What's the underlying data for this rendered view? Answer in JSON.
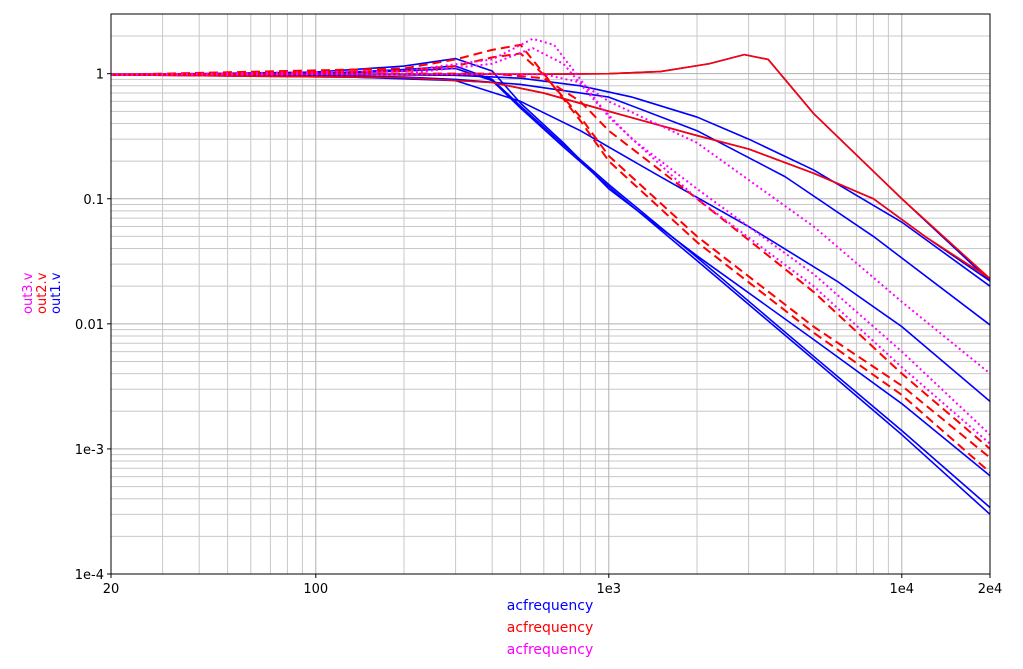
{
  "chart_data": {
    "type": "line",
    "title": "",
    "x_scale": "log",
    "y_scale": "log",
    "xlim": [
      20,
      20000
    ],
    "ylim": [
      0.0001,
      3
    ],
    "x_ticks": [
      {
        "value": 20,
        "label": "20"
      },
      {
        "value": 100,
        "label": "100"
      },
      {
        "value": 1000,
        "label": "1e3"
      },
      {
        "value": 10000,
        "label": "1e4"
      },
      {
        "value": 20000,
        "label": "2e4"
      }
    ],
    "y_ticks": [
      {
        "value": 1,
        "label": "1"
      },
      {
        "value": 0.1,
        "label": "0.1"
      },
      {
        "value": 0.01,
        "label": "0.01"
      },
      {
        "value": 0.001,
        "label": "1e-3"
      },
      {
        "value": 0.0001,
        "label": "1e-4"
      }
    ],
    "grid": true,
    "xlabels": [
      {
        "text": "acfrequency",
        "color": "#0000ff"
      },
      {
        "text": "acfrequency",
        "color": "#ff0000"
      },
      {
        "text": "acfrequency",
        "color": "#ff00ff"
      }
    ],
    "ylabels": [
      {
        "text": "out1.v",
        "color": "#0000ff"
      },
      {
        "text": "out2.v",
        "color": "#ff0000"
      },
      {
        "text": "out3.v",
        "color": "#ff00ff"
      }
    ],
    "series": [
      {
        "color": "#0000ff",
        "dash": "solid",
        "points": [
          [
            20,
            0.98
          ],
          [
            200,
            0.93
          ],
          [
            400,
            0.85
          ],
          [
            600,
            0.7
          ],
          [
            1000,
            0.5
          ],
          [
            2000,
            0.32
          ],
          [
            3000,
            0.25
          ],
          [
            5000,
            0.16
          ],
          [
            8000,
            0.1
          ],
          [
            12000,
            0.05
          ],
          [
            20000,
            0.022
          ]
        ]
      },
      {
        "color": "#0000ff",
        "dash": "solid",
        "points": [
          [
            20,
            0.99
          ],
          [
            300,
            0.99
          ],
          [
            600,
            0.99
          ],
          [
            1000,
            1.0
          ],
          [
            1500,
            1.04
          ],
          [
            2200,
            1.2
          ],
          [
            2900,
            1.42
          ],
          [
            3500,
            1.3
          ],
          [
            5000,
            0.48
          ],
          [
            10000,
            0.1
          ],
          [
            20000,
            0.022
          ]
        ]
      },
      {
        "color": "#0000ff",
        "dash": "solid",
        "points": [
          [
            20,
            0.99
          ],
          [
            100,
            0.99
          ],
          [
            300,
            0.97
          ],
          [
            500,
            0.92
          ],
          [
            800,
            0.8
          ],
          [
            1200,
            0.65
          ],
          [
            2000,
            0.45
          ],
          [
            3000,
            0.3
          ],
          [
            5000,
            0.17
          ],
          [
            10000,
            0.065
          ],
          [
            20000,
            0.02
          ]
        ]
      },
      {
        "color": "#0000ff",
        "dash": "solid",
        "points": [
          [
            20,
            0.98
          ],
          [
            100,
            0.97
          ],
          [
            200,
            0.94
          ],
          [
            300,
            0.9
          ],
          [
            500,
            0.82
          ],
          [
            1000,
            0.65
          ],
          [
            2000,
            0.35
          ],
          [
            4000,
            0.15
          ],
          [
            8000,
            0.05
          ],
          [
            20000,
            0.0098
          ]
        ]
      },
      {
        "color": "#0000ff",
        "dash": "solid",
        "points": [
          [
            20,
            0.98
          ],
          [
            100,
            0.96
          ],
          [
            300,
            0.88
          ],
          [
            500,
            0.6
          ],
          [
            800,
            0.35
          ],
          [
            1500,
            0.15
          ],
          [
            3000,
            0.06
          ],
          [
            6000,
            0.022
          ],
          [
            10000,
            0.0095
          ],
          [
            20000,
            0.0024
          ]
        ]
      },
      {
        "color": "#0000ff",
        "dash": "solid",
        "points": [
          [
            20,
            0.98
          ],
          [
            100,
            1.03
          ],
          [
            200,
            1.15
          ],
          [
            300,
            1.32
          ],
          [
            400,
            1.05
          ],
          [
            500,
            0.58
          ],
          [
            700,
            0.28
          ],
          [
            1000,
            0.12
          ],
          [
            2000,
            0.035
          ],
          [
            5000,
            0.0075
          ],
          [
            10000,
            0.0023
          ],
          [
            20000,
            0.00061
          ]
        ]
      },
      {
        "color": "#0000ff",
        "dash": "solid",
        "points": [
          [
            20,
            0.98
          ],
          [
            100,
            1.0
          ],
          [
            200,
            1.08
          ],
          [
            300,
            1.15
          ],
          [
            400,
            0.9
          ],
          [
            500,
            0.55
          ],
          [
            700,
            0.27
          ],
          [
            1000,
            0.13
          ],
          [
            2000,
            0.034
          ],
          [
            5000,
            0.0055
          ],
          [
            10000,
            0.0014
          ],
          [
            20000,
            0.00034
          ]
        ]
      },
      {
        "color": "#0000ff",
        "dash": "solid",
        "points": [
          [
            20,
            0.98
          ],
          [
            100,
            1.0
          ],
          [
            200,
            1.05
          ],
          [
            300,
            1.1
          ],
          [
            400,
            0.88
          ],
          [
            500,
            0.53
          ],
          [
            700,
            0.26
          ],
          [
            1000,
            0.125
          ],
          [
            2000,
            0.032
          ],
          [
            5000,
            0.0052
          ],
          [
            10000,
            0.0013
          ],
          [
            20000,
            0.0003
          ]
        ]
      },
      {
        "color": "#ff0000",
        "dash": "solid",
        "points": [
          [
            20,
            0.99
          ],
          [
            300,
            0.99
          ],
          [
            600,
            0.99
          ],
          [
            1000,
            1.0
          ],
          [
            1500,
            1.04
          ],
          [
            2200,
            1.2
          ],
          [
            2900,
            1.42
          ],
          [
            3500,
            1.3
          ],
          [
            5000,
            0.48
          ],
          [
            10000,
            0.1
          ],
          [
            20000,
            0.023
          ]
        ]
      },
      {
        "color": "#ff0000",
        "dash": "solid",
        "points": [
          [
            20,
            0.98
          ],
          [
            200,
            0.93
          ],
          [
            400,
            0.85
          ],
          [
            600,
            0.7
          ],
          [
            1000,
            0.5
          ],
          [
            2000,
            0.32
          ],
          [
            3000,
            0.25
          ],
          [
            5000,
            0.16
          ],
          [
            8000,
            0.1
          ],
          [
            12000,
            0.05
          ],
          [
            20000,
            0.023
          ]
        ]
      },
      {
        "color": "#ff0000",
        "dash": "dashed",
        "points": [
          [
            20,
            0.98
          ],
          [
            200,
            1.1
          ],
          [
            300,
            1.3
          ],
          [
            400,
            1.55
          ],
          [
            500,
            1.7
          ],
          [
            600,
            1.0
          ],
          [
            800,
            0.42
          ],
          [
            1000,
            0.2
          ],
          [
            2000,
            0.045
          ],
          [
            5000,
            0.0085
          ],
          [
            10000,
            0.0027
          ],
          [
            20000,
            0.00065
          ]
        ]
      },
      {
        "color": "#ff0000",
        "dash": "dashed",
        "points": [
          [
            20,
            0.98
          ],
          [
            200,
            1.05
          ],
          [
            300,
            1.15
          ],
          [
            400,
            1.35
          ],
          [
            500,
            1.45
          ],
          [
            600,
            0.98
          ],
          [
            800,
            0.45
          ],
          [
            1000,
            0.22
          ],
          [
            2000,
            0.05
          ],
          [
            5000,
            0.0095
          ],
          [
            10000,
            0.0032
          ],
          [
            20000,
            0.00085
          ]
        ]
      },
      {
        "color": "#ff0000",
        "dash": "dashed",
        "points": [
          [
            20,
            0.98
          ],
          [
            200,
            1.0
          ],
          [
            400,
            1.0
          ],
          [
            600,
            0.92
          ],
          [
            800,
            0.6
          ],
          [
            1000,
            0.35
          ],
          [
            2000,
            0.1
          ],
          [
            5000,
            0.018
          ],
          [
            10000,
            0.004
          ],
          [
            20000,
            0.001
          ]
        ]
      },
      {
        "color": "#ff00ff",
        "dash": "dotted",
        "points": [
          [
            20,
            0.98
          ],
          [
            200,
            1.05
          ],
          [
            400,
            1.3
          ],
          [
            550,
            1.9
          ],
          [
            650,
            1.7
          ],
          [
            800,
            0.9
          ],
          [
            1000,
            0.45
          ],
          [
            2000,
            0.1
          ],
          [
            5000,
            0.02
          ],
          [
            10000,
            0.0045
          ],
          [
            20000,
            0.0011
          ]
        ]
      },
      {
        "color": "#ff00ff",
        "dash": "dotted",
        "points": [
          [
            20,
            0.98
          ],
          [
            200,
            1.0
          ],
          [
            400,
            1.2
          ],
          [
            550,
            1.6
          ],
          [
            700,
            1.2
          ],
          [
            900,
            0.6
          ],
          [
            1200,
            0.3
          ],
          [
            2000,
            0.12
          ],
          [
            5000,
            0.025
          ],
          [
            10000,
            0.006
          ],
          [
            20000,
            0.0013
          ]
        ]
      },
      {
        "color": "#ff00ff",
        "dash": "dotted",
        "points": [
          [
            20,
            0.98
          ],
          [
            300,
            0.99
          ],
          [
            600,
            0.99
          ],
          [
            800,
            0.85
          ],
          [
            1000,
            0.6
          ],
          [
            2000,
            0.28
          ],
          [
            5000,
            0.06
          ],
          [
            10000,
            0.015
          ],
          [
            20000,
            0.004
          ]
        ]
      }
    ]
  }
}
